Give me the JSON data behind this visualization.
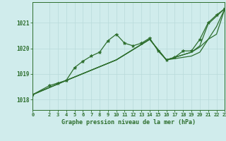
{
  "title": "Graphe pression niveau de la mer (hPa)",
  "background_color": "#d0ecec",
  "grid_color": "#b8dada",
  "line_color": "#2d6e2d",
  "xlim": [
    0,
    23
  ],
  "ylim": [
    1017.6,
    1021.8
  ],
  "xticks": [
    0,
    2,
    3,
    4,
    5,
    6,
    7,
    8,
    9,
    10,
    11,
    12,
    13,
    14,
    15,
    16,
    17,
    18,
    19,
    20,
    21,
    22,
    23
  ],
  "yticks": [
    1018,
    1019,
    1020,
    1021
  ],
  "series": [
    {
      "x": [
        0,
        2,
        3,
        4,
        5,
        6,
        7,
        8,
        9,
        10,
        11,
        12,
        13,
        14,
        15,
        16,
        17,
        18,
        19,
        20,
        21,
        22,
        23
      ],
      "y": [
        1018.2,
        1018.55,
        1018.65,
        1018.75,
        1019.25,
        1019.5,
        1019.7,
        1019.85,
        1020.3,
        1020.55,
        1020.2,
        1020.1,
        1020.2,
        1020.4,
        1019.9,
        1019.55,
        1019.65,
        1019.9,
        1019.9,
        1020.35,
        1021.0,
        1021.3,
        1021.55
      ],
      "marker": true
    },
    {
      "x": [
        0,
        4,
        10,
        14,
        16,
        17,
        18,
        19,
        20,
        21,
        22,
        23
      ],
      "y": [
        1018.2,
        1018.75,
        1019.55,
        1020.35,
        1019.55,
        1019.6,
        1019.65,
        1019.7,
        1019.85,
        1020.35,
        1020.55,
        1021.55
      ],
      "marker": false
    },
    {
      "x": [
        0,
        4,
        10,
        14,
        16,
        17,
        18,
        19,
        20,
        21,
        22,
        23
      ],
      "y": [
        1018.2,
        1018.75,
        1019.55,
        1020.35,
        1019.55,
        1019.65,
        1019.75,
        1019.85,
        1020.05,
        1020.35,
        1020.85,
        1021.55
      ],
      "marker": false
    },
    {
      "x": [
        0,
        4,
        10,
        14,
        16,
        17,
        18,
        19,
        20,
        21,
        22,
        23
      ],
      "y": [
        1018.2,
        1018.75,
        1019.55,
        1020.35,
        1019.55,
        1019.65,
        1019.75,
        1019.85,
        1020.1,
        1020.95,
        1021.25,
        1021.55
      ],
      "marker": false
    }
  ]
}
